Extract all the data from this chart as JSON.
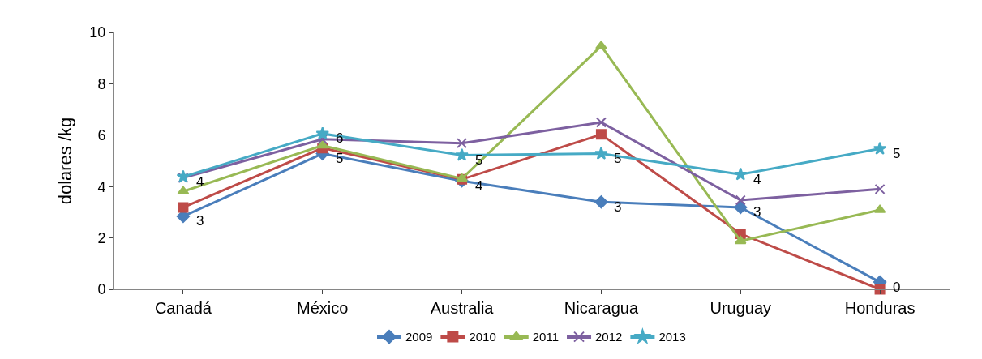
{
  "chart_data": {
    "type": "line",
    "ylabel": "dolares /kg",
    "categories": [
      "Canadá",
      "México",
      "Australia",
      "Nicaragua",
      "Uruguay",
      "Honduras"
    ],
    "ylim": [
      0,
      10
    ],
    "yticks": [
      0,
      2,
      4,
      6,
      8,
      10
    ],
    "grid": false,
    "legend": "bottom",
    "series": [
      {
        "name": "2009",
        "color": "#4a7ebb",
        "marker": "diamond",
        "values": [
          2.84,
          5.28,
          4.22,
          3.4,
          3.19,
          0.28
        ],
        "value_labels": [
          "3",
          "5",
          "4",
          "3",
          "3",
          "0"
        ]
      },
      {
        "name": "2010",
        "color": "#be4b48",
        "marker": "square",
        "values": [
          3.19,
          5.5,
          4.28,
          6.03,
          2.16,
          0.0
        ]
      },
      {
        "name": "2011",
        "color": "#98b954",
        "marker": "triangle",
        "values": [
          3.81,
          5.6,
          4.31,
          9.47,
          1.88,
          3.09
        ]
      },
      {
        "name": "2012",
        "color": "#7d60a0",
        "marker": "cross",
        "values": [
          4.34,
          5.84,
          5.69,
          6.5,
          3.47,
          3.9
        ]
      },
      {
        "name": "2013",
        "color": "#46aac5",
        "marker": "star",
        "values": [
          4.38,
          6.06,
          5.22,
          5.28,
          4.47,
          5.47
        ],
        "value_labels": [
          "4",
          "6",
          "5",
          "5",
          "4",
          "5"
        ]
      }
    ]
  }
}
